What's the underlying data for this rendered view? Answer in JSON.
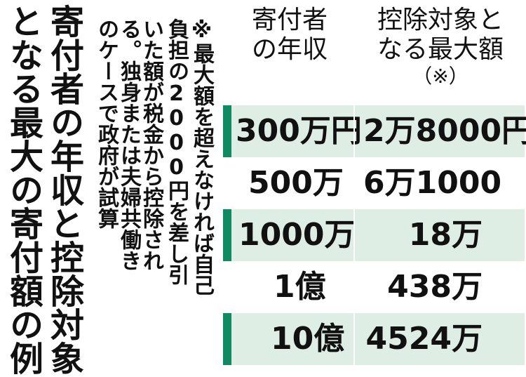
{
  "title": {
    "line1": "寄付者の年収と控除対象",
    "line2": "となる最大の寄付額の例"
  },
  "note": {
    "col1": "※最大額を超えなければ自己",
    "col2": "負担の2000円を差し引",
    "col3": "いた額が税金から控除され",
    "col4": "る。独身または夫婦共働き",
    "col5": "のケースで政府が試算"
  },
  "table": {
    "header_income": "寄付者の年収",
    "header_max": "控除対象となる最大額",
    "header_max_note": "（※）",
    "rows": [
      {
        "income": "300万円",
        "max": "2万8000円"
      },
      {
        "income": "500万",
        "max": "6万1000"
      },
      {
        "income": "1000万",
        "max": "18万"
      },
      {
        "income": "1億",
        "max": "438万"
      },
      {
        "income": "10億",
        "max": "4524万"
      }
    ]
  },
  "colors": {
    "accent": "#0f8a63",
    "row_shade": "#dfeee4"
  }
}
